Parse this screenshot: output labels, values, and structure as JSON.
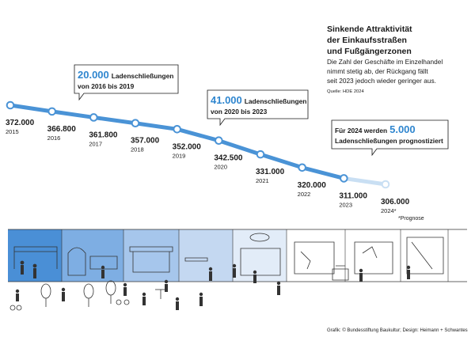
{
  "header": {
    "title_lines": [
      "Sinkende Attraktivität",
      "der Einkaufsstraßen",
      "und Fußgängerzonen"
    ],
    "desc_lines": [
      "Die Zahl der Geschäfte im Einzelhandel",
      "nimmt stetig ab, der Rückgang fällt",
      "seit 2023 jedoch wieder geringer aus."
    ],
    "source": "Quelle: HDE 2024"
  },
  "callouts": [
    {
      "big": "20.000",
      "text": "Ladenschließungen",
      "line2": "von 2016 bis 2019"
    },
    {
      "big": "41.000",
      "text": "Ladenschließungen",
      "line2": "von 2020 bis 2023"
    },
    {
      "pre": "Für 2024 werden",
      "big": "5.000",
      "line2": "Ladenschließungen prognostiziert"
    }
  ],
  "footnote": "*Prognose",
  "credit": "Grafik: © Bundesstiftung Baukultur; Design: Heimann + Schwantes",
  "colors": {
    "line": "#4a93d6",
    "forecast": "#c9dff3",
    "accent": "#2f86cf"
  },
  "chart_data": {
    "type": "line",
    "title": "Sinkende Attraktivität der Einkaufsstraßen und Fußgängerzonen",
    "x": [
      "2015",
      "2016",
      "2017",
      "2018",
      "2019",
      "2020",
      "2021",
      "2022",
      "2023",
      "2024*"
    ],
    "value_labels": [
      "372.000",
      "366.800",
      "361.800",
      "357.000",
      "352.000",
      "342.500",
      "331.000",
      "320.000",
      "311.000",
      "306.000"
    ],
    "series": [
      {
        "values": [
          372000,
          366800,
          361800,
          357000,
          352000,
          342500,
          331000,
          320000,
          311000,
          306000
        ]
      }
    ],
    "forecast_index": 9
  }
}
